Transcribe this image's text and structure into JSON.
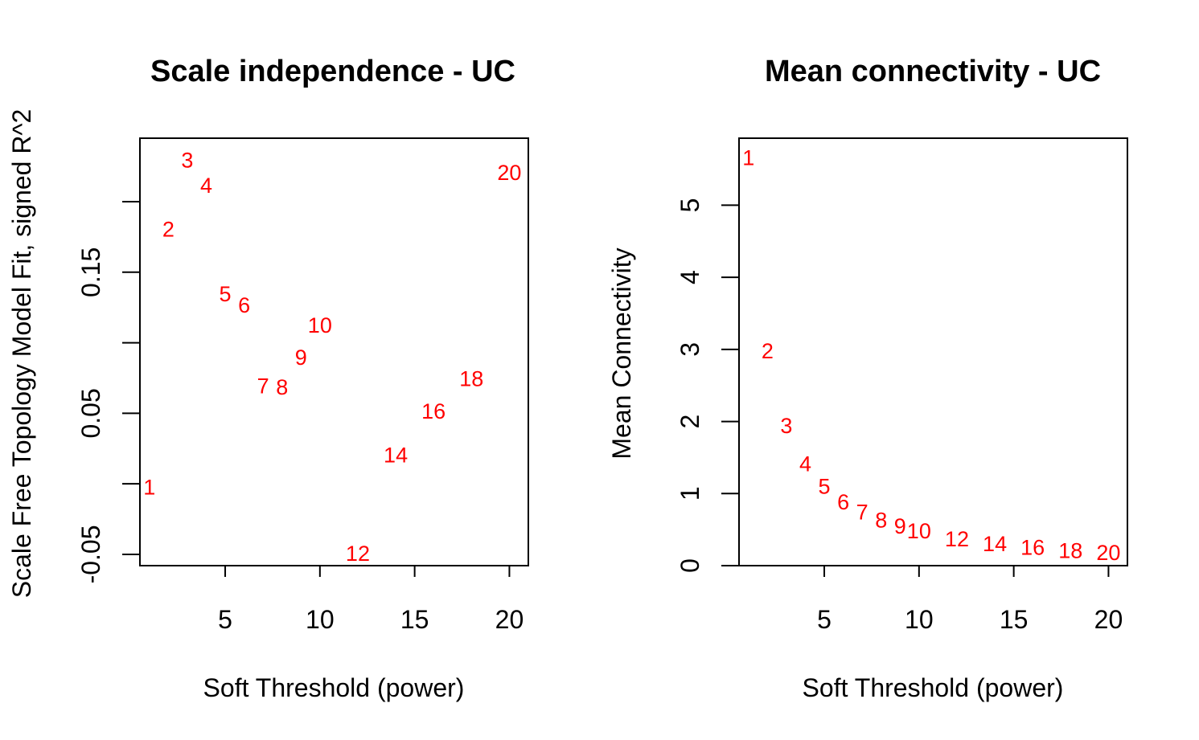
{
  "chart_data": [
    {
      "type": "scatter",
      "title": "Scale independence - UC",
      "xlabel": "Soft Threshold (power)",
      "ylabel": "Scale Free Topology Model Fit, signed R^2",
      "xlim": [
        0.5,
        21
      ],
      "ylim": [
        -0.058,
        0.245
      ],
      "xticks": [
        5,
        10,
        15,
        20
      ],
      "yticks": [
        -0.05,
        0.05,
        0.15
      ],
      "yticks_minor": [
        0.0,
        0.1,
        0.2
      ],
      "grid": false,
      "marker": "text",
      "point_color": "#ff0000",
      "points": [
        {
          "x": 1,
          "y": -0.002,
          "label": "1"
        },
        {
          "x": 2,
          "y": 0.181,
          "label": "2"
        },
        {
          "x": 3,
          "y": 0.23,
          "label": "3"
        },
        {
          "x": 4,
          "y": 0.212,
          "label": "4"
        },
        {
          "x": 5,
          "y": 0.135,
          "label": "5"
        },
        {
          "x": 6,
          "y": 0.127,
          "label": "6"
        },
        {
          "x": 7,
          "y": 0.07,
          "label": "7"
        },
        {
          "x": 8,
          "y": 0.069,
          "label": "8"
        },
        {
          "x": 9,
          "y": 0.09,
          "label": "9"
        },
        {
          "x": 10,
          "y": 0.113,
          "label": "10"
        },
        {
          "x": 12,
          "y": -0.049,
          "label": "12"
        },
        {
          "x": 14,
          "y": 0.021,
          "label": "14"
        },
        {
          "x": 16,
          "y": 0.052,
          "label": "16"
        },
        {
          "x": 18,
          "y": 0.075,
          "label": "18"
        },
        {
          "x": 20,
          "y": 0.221,
          "label": "20"
        }
      ]
    },
    {
      "type": "scatter",
      "title": "Mean connectivity - UC",
      "xlabel": "Soft Threshold (power)",
      "ylabel": "Mean Connectivity",
      "xlim": [
        0.5,
        21
      ],
      "ylim": [
        0,
        5.93
      ],
      "xticks": [
        5,
        10,
        15,
        20
      ],
      "yticks": [
        0,
        1,
        2,
        3,
        4,
        5
      ],
      "grid": false,
      "marker": "text",
      "point_color": "#ff0000",
      "points": [
        {
          "x": 1,
          "y": 5.67,
          "label": "1"
        },
        {
          "x": 2,
          "y": 2.99,
          "label": "2"
        },
        {
          "x": 3,
          "y": 1.95,
          "label": "3"
        },
        {
          "x": 4,
          "y": 1.42,
          "label": "4"
        },
        {
          "x": 5,
          "y": 1.11,
          "label": "5"
        },
        {
          "x": 6,
          "y": 0.89,
          "label": "6"
        },
        {
          "x": 7,
          "y": 0.75,
          "label": "7"
        },
        {
          "x": 8,
          "y": 0.64,
          "label": "8"
        },
        {
          "x": 9,
          "y": 0.56,
          "label": "9"
        },
        {
          "x": 10,
          "y": 0.49,
          "label": "10"
        },
        {
          "x": 12,
          "y": 0.38,
          "label": "12"
        },
        {
          "x": 14,
          "y": 0.31,
          "label": "14"
        },
        {
          "x": 16,
          "y": 0.26,
          "label": "16"
        },
        {
          "x": 18,
          "y": 0.22,
          "label": "18"
        },
        {
          "x": 20,
          "y": 0.19,
          "label": "20"
        }
      ]
    }
  ]
}
